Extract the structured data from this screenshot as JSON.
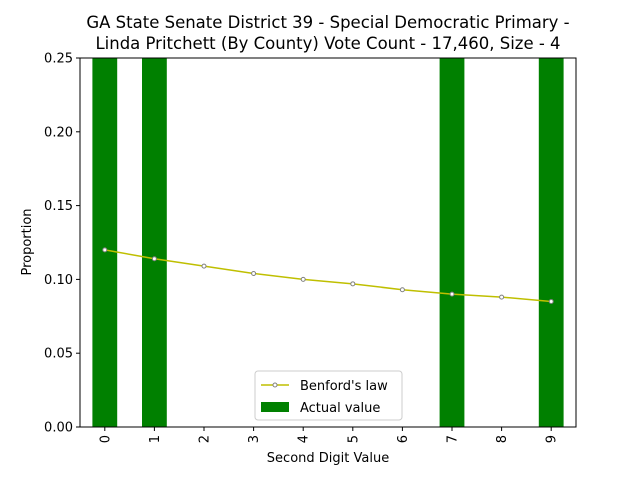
{
  "chart_data": {
    "type": "bar",
    "title": [
      "GA State Senate District 39 - Special Democratic Primary -",
      "Linda Pritchett (By County) Vote Count - 17,460, Size - 4"
    ],
    "xlabel": "Second Digit Value",
    "ylabel": "Proportion",
    "categories": [
      "0",
      "1",
      "2",
      "3",
      "4",
      "5",
      "6",
      "7",
      "8",
      "9"
    ],
    "ylim": [
      0,
      0.25
    ],
    "yticks": [
      "0.00",
      "0.05",
      "0.10",
      "0.15",
      "0.20",
      "0.25"
    ],
    "grid": false,
    "legend_position": "lower center",
    "series": [
      {
        "name": "Benford's law",
        "kind": "line",
        "color": "#bfbf00",
        "values": [
          0.12,
          0.114,
          0.109,
          0.104,
          0.1,
          0.097,
          0.093,
          0.09,
          0.088,
          0.085
        ]
      },
      {
        "name": "Actual value",
        "kind": "bar",
        "color": "#008000",
        "values": [
          0.25,
          0.25,
          0,
          0,
          0,
          0,
          0,
          0.25,
          0,
          0.25
        ]
      }
    ]
  }
}
